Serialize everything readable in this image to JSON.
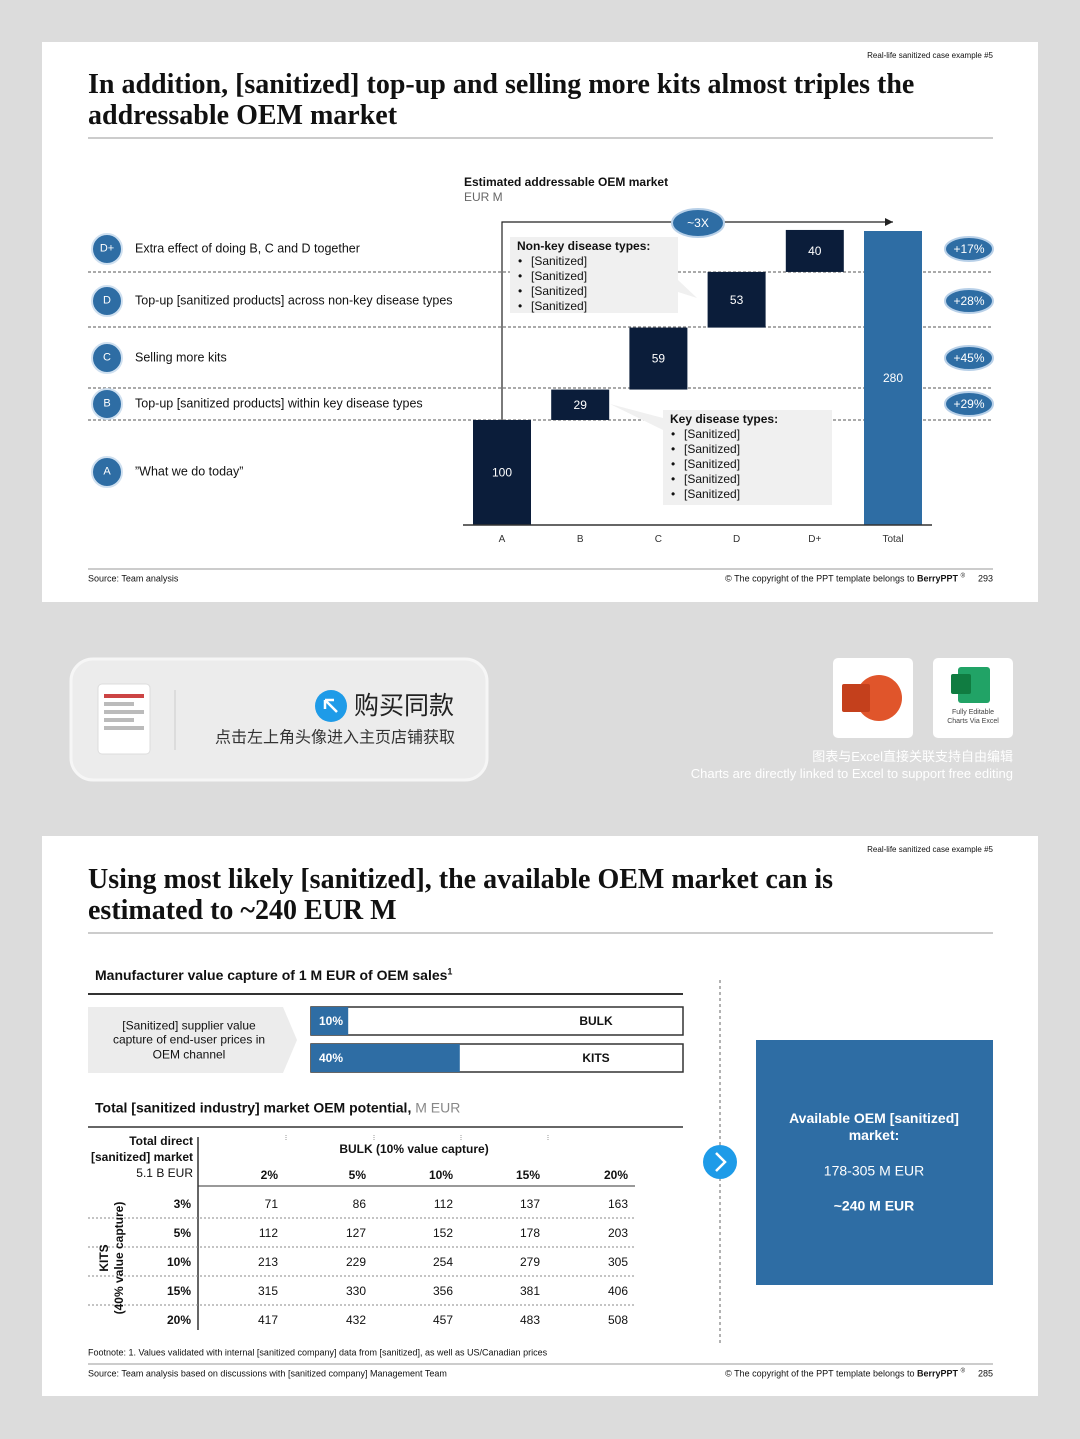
{
  "slide1": {
    "tag": "Real-life sanitized case example #5",
    "title": "In addition, [sanitized] top-up and selling more kits almost triples the addressable OEM market",
    "rows": [
      {
        "badge": "D+",
        "text": "Extra effect of doing B, C and D together",
        "change": "+17%"
      },
      {
        "badge": "D",
        "text": "Top-up [sanitized products] across non-key disease types",
        "change": "+28%"
      },
      {
        "badge": "C",
        "text": "Selling more kits",
        "change": "+45%"
      },
      {
        "badge": "B",
        "text": "Top-up [sanitized products] within key disease types",
        "change": "+29%"
      },
      {
        "badge": "A",
        "text": "”What we do today”"
      }
    ],
    "multiplier": "~3X",
    "callouts": [
      {
        "title": "Non-key disease types:",
        "items": [
          "[Sanitized]",
          "[Sanitized]",
          "[Sanitized]",
          "[Sanitized]"
        ]
      },
      {
        "title": "Key disease types:",
        "items": [
          "[Sanitized]",
          "[Sanitized]",
          "[Sanitized]",
          "[Sanitized]",
          "[Sanitized]"
        ]
      }
    ],
    "source": "Source: Team analysis",
    "copyright": "© The copyright of the PPT template belongs to",
    "brand": "BerryPPT",
    "mark": "®",
    "page": "293"
  },
  "chart_data": {
    "type": "waterfall",
    "title": "Estimated addressable OEM market",
    "subtitle": "EUR M",
    "categories": [
      "A",
      "B",
      "C",
      "D",
      "D+",
      "Total"
    ],
    "values": [
      100,
      29,
      59,
      53,
      40,
      280
    ],
    "color": "#0b1d3a",
    "total_color": "#2e6da4"
  },
  "banner": {
    "button": "购买同款",
    "hint": "点击左上角头像进入主页店铺获取",
    "badge": "Fully Editable Charts Via Excel",
    "caption_cn": "图表与Excel直接关联支持自由编辑",
    "caption_en": "Charts are directly linked to Excel to support free editing"
  },
  "slide2": {
    "tag": "Real-life sanitized case example #5",
    "title": "Using most likely [sanitized], the available OEM market can is estimated to ~240 EUR M",
    "capture_title": "Manufacturer value capture of 1 M EUR of OEM sales",
    "capture_note": "1",
    "channel_label": "[Sanitized] supplier value capture of end-user prices in OEM channel",
    "capture_bars": [
      {
        "value": 10,
        "label": "10%",
        "name": "BULK"
      },
      {
        "value": 40,
        "label": "40%",
        "name": "KITS"
      }
    ],
    "potential_title": "Total [sanitized industry] market OEM potential,",
    "potential_unit": "M EUR",
    "table": {
      "corner": [
        "Total direct",
        "[sanitized] market",
        "5.1 B EUR"
      ],
      "column_header": "BULK (10% value capture)",
      "row_header": [
        "KITS",
        "(40% value capture)"
      ],
      "columns": [
        "2%",
        "5%",
        "10%",
        "15%",
        "20%"
      ],
      "rows": [
        {
          "label": "3%",
          "values": [
            71,
            86,
            112,
            137,
            163
          ]
        },
        {
          "label": "5%",
          "values": [
            112,
            127,
            152,
            178,
            203
          ]
        },
        {
          "label": "10%",
          "values": [
            213,
            229,
            254,
            279,
            305
          ]
        },
        {
          "label": "15%",
          "values": [
            315,
            330,
            356,
            381,
            406
          ]
        },
        {
          "label": "20%",
          "values": [
            417,
            432,
            457,
            483,
            508
          ]
        }
      ]
    },
    "result": {
      "title": "Available OEM [sanitized] market:",
      "range": "178-305 M EUR",
      "estimate": "~240 M EUR"
    },
    "footnote": "Footnote: 1. Values validated with internal [sanitized company] data from [sanitized], as well as US/Canadian prices",
    "source": "Source: Team analysis based on discussions with [sanitized company] Management Team",
    "copyright": "© The copyright of the PPT template belongs to",
    "brand": "BerryPPT",
    "mark": "®",
    "page": "285"
  }
}
